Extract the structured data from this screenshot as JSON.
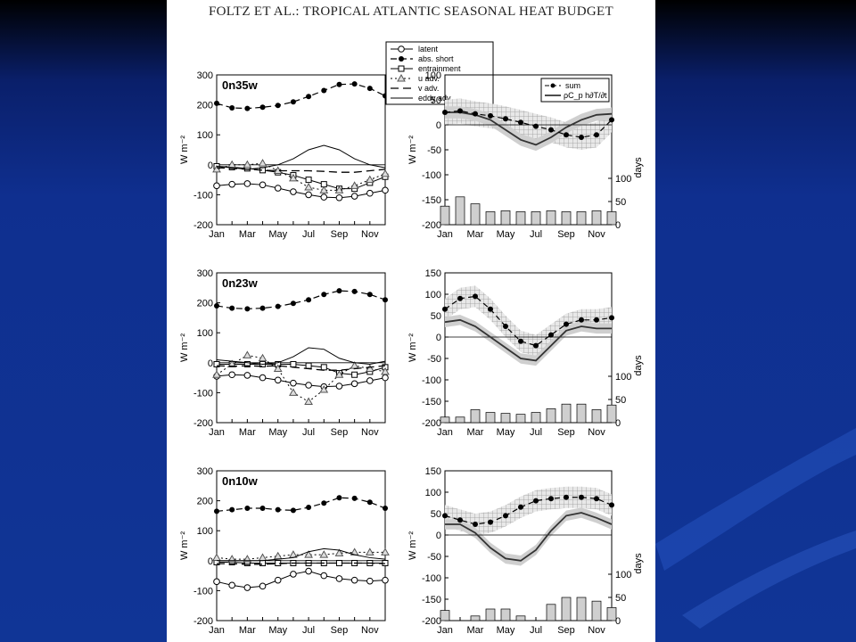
{
  "slide": {
    "paper_title": "FOLTZ ET AL.: TROPICAL ATLANTIC SEASONAL HEAT BUDGET",
    "background": "#0f2f8f",
    "paper_bg": "#ffffff"
  },
  "chart_data": [
    {
      "type": "line",
      "panel": "left-1",
      "title": "0n35w",
      "ylabel": "W m⁻²",
      "ylim": [
        -200,
        300
      ],
      "yticks": [
        -200,
        -100,
        0,
        100,
        200,
        300
      ],
      "xticks": [
        "Jan",
        "Mar",
        "May",
        "Jul",
        "Sep",
        "Nov"
      ],
      "x": [
        0,
        1,
        2,
        3,
        4,
        5,
        6,
        7,
        8,
        9,
        10,
        11
      ],
      "legend": {
        "position": "top-right",
        "entries": [
          "latent",
          "abs. short",
          "entrainment",
          "u adv.",
          "v adv.",
          "eddy adv."
        ]
      },
      "series": [
        {
          "name": "latent",
          "values": [
            -70,
            -65,
            -63,
            -67,
            -78,
            -90,
            -100,
            -108,
            -110,
            -105,
            -95,
            -85
          ]
        },
        {
          "name": "abs. short",
          "values": [
            205,
            190,
            188,
            192,
            198,
            210,
            228,
            248,
            268,
            270,
            255,
            230
          ]
        },
        {
          "name": "entrainment",
          "values": [
            -5,
            -8,
            -12,
            -18,
            -25,
            -35,
            -50,
            -65,
            -80,
            -80,
            -60,
            -40
          ]
        },
        {
          "name": "u adv.",
          "values": [
            -15,
            0,
            0,
            5,
            -20,
            -45,
            -75,
            -85,
            -85,
            -70,
            -50,
            -30
          ]
        },
        {
          "name": "v adv.",
          "values": [
            -10,
            -12,
            -15,
            -18,
            -20,
            -20,
            -20,
            -22,
            -25,
            -25,
            -20,
            -15
          ]
        },
        {
          "name": "eddy adv.",
          "values": [
            -5,
            -10,
            -15,
            -10,
            0,
            20,
            50,
            65,
            50,
            20,
            0,
            -10
          ]
        }
      ]
    },
    {
      "type": "line",
      "panel": "right-1",
      "ylabel": "W m⁻²",
      "ylabel_right": "days",
      "ylim": [
        -200,
        100
      ],
      "yticks": [
        -200,
        -150,
        -100,
        -50,
        0,
        50,
        100
      ],
      "yticks_right": [
        0,
        50,
        100
      ],
      "xticks": [
        "Jan",
        "Mar",
        "May",
        "Jul",
        "Sep",
        "Nov"
      ],
      "x": [
        0,
        1,
        2,
        3,
        4,
        5,
        6,
        7,
        8,
        9,
        10,
        11
      ],
      "legend": {
        "position": "top-right",
        "entries": [
          "sum",
          "ρC_p h∂T/∂t"
        ]
      },
      "series": [
        {
          "name": "sum",
          "values": [
            25,
            28,
            22,
            18,
            12,
            5,
            -3,
            -10,
            -20,
            -25,
            -20,
            10
          ]
        },
        {
          "name": "ρC_p h∂T/∂t",
          "values": [
            25,
            25,
            20,
            10,
            -10,
            -30,
            -40,
            -25,
            -5,
            10,
            20,
            22
          ]
        }
      ],
      "bars_days": [
        40,
        60,
        45,
        28,
        30,
        28,
        28,
        30,
        28,
        28,
        30,
        28
      ]
    },
    {
      "type": "line",
      "panel": "left-2",
      "title": "0n23w",
      "ylabel": "W m⁻²",
      "ylim": [
        -200,
        300
      ],
      "yticks": [
        -200,
        -100,
        0,
        100,
        200,
        300
      ],
      "xticks": [
        "Jan",
        "Mar",
        "May",
        "Jul",
        "Sep",
        "Nov"
      ],
      "x": [
        0,
        1,
        2,
        3,
        4,
        5,
        6,
        7,
        8,
        9,
        10,
        11
      ],
      "series": [
        {
          "name": "latent",
          "values": [
            -45,
            -40,
            -42,
            -50,
            -58,
            -68,
            -75,
            -80,
            -78,
            -70,
            -60,
            -50
          ]
        },
        {
          "name": "abs. short",
          "values": [
            190,
            182,
            180,
            182,
            188,
            198,
            210,
            228,
            240,
            238,
            228,
            210
          ]
        },
        {
          "name": "entrainment",
          "values": [
            -5,
            -5,
            -5,
            -5,
            -5,
            -5,
            -10,
            -15,
            -35,
            -40,
            -30,
            -15
          ]
        },
        {
          "name": "u adv.",
          "values": [
            -40,
            -5,
            25,
            15,
            -20,
            -100,
            -130,
            -90,
            -40,
            -10,
            -20,
            -30
          ]
        },
        {
          "name": "v adv.",
          "values": [
            -10,
            -12,
            -10,
            -12,
            -10,
            -15,
            -20,
            -25,
            -25,
            -20,
            -15,
            -10
          ]
        },
        {
          "name": "eddy adv.",
          "values": [
            10,
            5,
            0,
            -5,
            0,
            20,
            50,
            45,
            15,
            0,
            -5,
            5
          ]
        }
      ]
    },
    {
      "type": "line",
      "panel": "right-2",
      "ylabel": "W m⁻²",
      "ylabel_right": "days",
      "ylim": [
        -200,
        150
      ],
      "yticks": [
        -200,
        -150,
        -100,
        -50,
        0,
        50,
        100,
        150
      ],
      "yticks_right": [
        0,
        50,
        100
      ],
      "xticks": [
        "Jan",
        "Mar",
        "May",
        "Jul",
        "Sep",
        "Nov"
      ],
      "x": [
        0,
        1,
        2,
        3,
        4,
        5,
        6,
        7,
        8,
        9,
        10,
        11
      ],
      "series": [
        {
          "name": "sum",
          "values": [
            65,
            90,
            95,
            65,
            25,
            -10,
            -20,
            5,
            30,
            40,
            40,
            45
          ]
        },
        {
          "name": "ρC_p h∂T/∂t",
          "values": [
            35,
            40,
            25,
            0,
            -25,
            -50,
            -55,
            -20,
            15,
            25,
            20,
            20
          ]
        }
      ],
      "bars_days": [
        12,
        12,
        28,
        22,
        20,
        18,
        22,
        30,
        40,
        40,
        28,
        38
      ]
    },
    {
      "type": "line",
      "panel": "left-3",
      "title": "0n10w",
      "ylabel": "W m⁻²",
      "ylim": [
        -200,
        300
      ],
      "yticks": [
        -200,
        -100,
        0,
        100,
        200,
        300
      ],
      "xticks": [
        "Jan",
        "Mar",
        "May",
        "Jul",
        "Sep",
        "Nov"
      ],
      "x": [
        0,
        1,
        2,
        3,
        4,
        5,
        6,
        7,
        8,
        9,
        10,
        11
      ],
      "series": [
        {
          "name": "latent",
          "values": [
            -70,
            -82,
            -90,
            -85,
            -65,
            -45,
            -35,
            -50,
            -60,
            -65,
            -68,
            -65
          ]
        },
        {
          "name": "abs. short",
          "values": [
            165,
            170,
            175,
            175,
            170,
            168,
            178,
            192,
            210,
            208,
            195,
            175
          ]
        },
        {
          "name": "entrainment",
          "values": [
            -5,
            -5,
            -8,
            -8,
            -8,
            -8,
            -8,
            -8,
            -8,
            -8,
            -8,
            -8
          ]
        },
        {
          "name": "u adv.",
          "values": [
            10,
            5,
            5,
            10,
            15,
            20,
            20,
            20,
            25,
            28,
            28,
            28
          ]
        },
        {
          "name": "v adv.",
          "values": [
            -10,
            -10,
            -12,
            -12,
            -10,
            -8,
            -8,
            -8,
            -8,
            -8,
            -8,
            -10
          ]
        },
        {
          "name": "eddy adv.",
          "values": [
            0,
            0,
            0,
            0,
            5,
            10,
            30,
            40,
            35,
            20,
            10,
            5
          ]
        }
      ]
    },
    {
      "type": "line",
      "panel": "right-3",
      "ylabel": "W m⁻²",
      "ylabel_right": "days",
      "ylim": [
        -200,
        150
      ],
      "yticks": [
        -200,
        -150,
        -100,
        -50,
        0,
        50,
        100,
        150
      ],
      "yticks_right": [
        0,
        50,
        100
      ],
      "xticks": [
        "Jan",
        "Mar",
        "May",
        "Jul",
        "Sep",
        "Nov"
      ],
      "x": [
        0,
        1,
        2,
        3,
        4,
        5,
        6,
        7,
        8,
        9,
        10,
        11
      ],
      "series": [
        {
          "name": "sum",
          "values": [
            45,
            35,
            25,
            30,
            45,
            65,
            80,
            85,
            88,
            88,
            85,
            70
          ]
        },
        {
          "name": "ρC_p h∂T/∂t",
          "values": [
            25,
            25,
            5,
            -30,
            -55,
            -60,
            -35,
            10,
            45,
            52,
            40,
            25
          ]
        }
      ],
      "bars_days": [
        22,
        0,
        10,
        25,
        25,
        10,
        0,
        35,
        50,
        50,
        42,
        28
      ]
    }
  ]
}
